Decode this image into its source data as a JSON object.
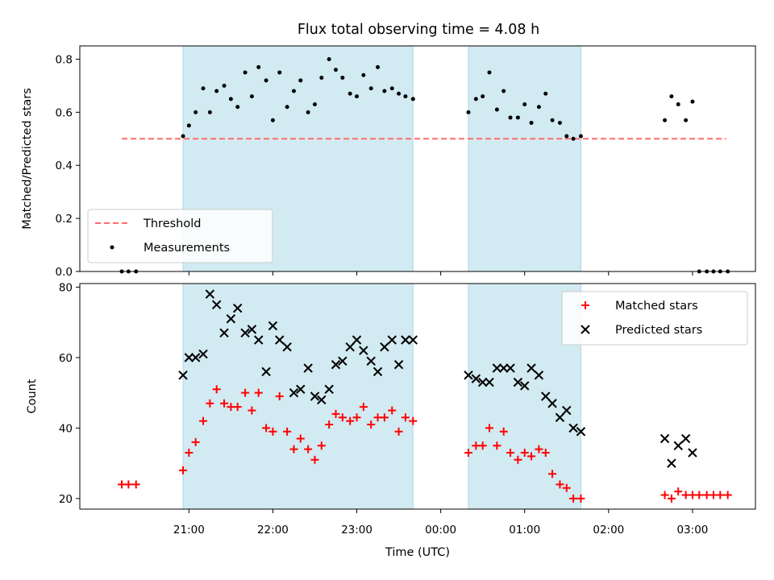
{
  "chart_data": {
    "title": "Flux total observing time = 4.08 h",
    "xlabel": "Time (UTC)",
    "x_tick_labels": [
      "21:00",
      "22:00",
      "23:00",
      "00:00",
      "01:00",
      "02:00",
      "03:00"
    ],
    "x_tick_hours": [
      21,
      22,
      23,
      24,
      25,
      26,
      27
    ],
    "x_range_hours": [
      19.7,
      27.75
    ],
    "colors": {
      "shade": "#add8e6",
      "threshold": "#ff6b6b",
      "measurements": "#000000",
      "matched": "#ff0000",
      "predicted": "#000000"
    },
    "shaded_intervals_hours": [
      [
        20.93,
        23.67
      ],
      [
        24.33,
        25.67
      ]
    ],
    "panels": [
      {
        "type": "scatter",
        "ylabel": "Matched/Predicted stars",
        "ylim": [
          0,
          0.85
        ],
        "y_ticks": [
          0.0,
          0.2,
          0.4,
          0.6,
          0.8
        ],
        "y_tick_labels": [
          "0.0",
          "0.2",
          "0.4",
          "0.6",
          "0.8"
        ],
        "legend_position": "lower-left",
        "threshold": {
          "name": "Threshold",
          "value": 0.5,
          "x_range_hours": [
            20.2,
            27.4
          ],
          "style": "dashed"
        },
        "series": [
          {
            "name": "Measurements",
            "marker": "dot",
            "points": [
              [
                20.2,
                0.0
              ],
              [
                20.28,
                0.0
              ],
              [
                20.37,
                0.0
              ],
              [
                20.93,
                0.51
              ],
              [
                21.0,
                0.55
              ],
              [
                21.08,
                0.6
              ],
              [
                21.17,
                0.69
              ],
              [
                21.25,
                0.6
              ],
              [
                21.33,
                0.68
              ],
              [
                21.42,
                0.7
              ],
              [
                21.5,
                0.65
              ],
              [
                21.58,
                0.62
              ],
              [
                21.67,
                0.75
              ],
              [
                21.75,
                0.66
              ],
              [
                21.83,
                0.77
              ],
              [
                21.92,
                0.72
              ],
              [
                22.0,
                0.57
              ],
              [
                22.08,
                0.75
              ],
              [
                22.17,
                0.62
              ],
              [
                22.25,
                0.68
              ],
              [
                22.33,
                0.72
              ],
              [
                22.42,
                0.6
              ],
              [
                22.5,
                0.63
              ],
              [
                22.58,
                0.73
              ],
              [
                22.67,
                0.8
              ],
              [
                22.75,
                0.76
              ],
              [
                22.83,
                0.73
              ],
              [
                22.92,
                0.67
              ],
              [
                23.0,
                0.66
              ],
              [
                23.08,
                0.74
              ],
              [
                23.17,
                0.69
              ],
              [
                23.25,
                0.77
              ],
              [
                23.33,
                0.68
              ],
              [
                23.42,
                0.69
              ],
              [
                23.5,
                0.67
              ],
              [
                23.58,
                0.66
              ],
              [
                23.67,
                0.65
              ],
              [
                24.33,
                0.6
              ],
              [
                24.42,
                0.65
              ],
              [
                24.5,
                0.66
              ],
              [
                24.58,
                0.75
              ],
              [
                24.67,
                0.61
              ],
              [
                24.75,
                0.68
              ],
              [
                24.83,
                0.58
              ],
              [
                24.92,
                0.58
              ],
              [
                25.0,
                0.63
              ],
              [
                25.08,
                0.56
              ],
              [
                25.17,
                0.62
              ],
              [
                25.25,
                0.67
              ],
              [
                25.33,
                0.57
              ],
              [
                25.42,
                0.56
              ],
              [
                25.5,
                0.51
              ],
              [
                25.58,
                0.5
              ],
              [
                25.67,
                0.51
              ],
              [
                26.67,
                0.57
              ],
              [
                26.75,
                0.66
              ],
              [
                26.83,
                0.63
              ],
              [
                26.92,
                0.57
              ],
              [
                27.0,
                0.64
              ],
              [
                27.08,
                0.0
              ],
              [
                27.17,
                0.0
              ],
              [
                27.25,
                0.0
              ],
              [
                27.33,
                0.0
              ],
              [
                27.42,
                0.0
              ]
            ]
          }
        ]
      },
      {
        "type": "scatter",
        "ylabel": "Count",
        "ylim": [
          17,
          81
        ],
        "y_ticks": [
          20,
          40,
          60,
          80
        ],
        "y_tick_labels": [
          "20",
          "40",
          "60",
          "80"
        ],
        "legend_position": "upper-right",
        "series": [
          {
            "name": "Matched stars",
            "marker": "plus",
            "points": [
              [
                20.2,
                24
              ],
              [
                20.28,
                24
              ],
              [
                20.37,
                24
              ],
              [
                20.93,
                28
              ],
              [
                21.0,
                33
              ],
              [
                21.08,
                36
              ],
              [
                21.17,
                42
              ],
              [
                21.25,
                47
              ],
              [
                21.33,
                51
              ],
              [
                21.42,
                47
              ],
              [
                21.5,
                46
              ],
              [
                21.58,
                46
              ],
              [
                21.67,
                50
              ],
              [
                21.75,
                45
              ],
              [
                21.83,
                50
              ],
              [
                21.92,
                40
              ],
              [
                22.0,
                39
              ],
              [
                22.08,
                49
              ],
              [
                22.17,
                39
              ],
              [
                22.25,
                34
              ],
              [
                22.33,
                37
              ],
              [
                22.42,
                34
              ],
              [
                22.5,
                31
              ],
              [
                22.58,
                35
              ],
              [
                22.67,
                41
              ],
              [
                22.75,
                44
              ],
              [
                22.83,
                43
              ],
              [
                22.92,
                42
              ],
              [
                23.0,
                43
              ],
              [
                23.08,
                46
              ],
              [
                23.17,
                41
              ],
              [
                23.25,
                43
              ],
              [
                23.33,
                43
              ],
              [
                23.42,
                45
              ],
              [
                23.5,
                39
              ],
              [
                23.58,
                43
              ],
              [
                23.67,
                42
              ],
              [
                24.33,
                33
              ],
              [
                24.42,
                35
              ],
              [
                24.5,
                35
              ],
              [
                24.58,
                40
              ],
              [
                24.67,
                35
              ],
              [
                24.75,
                39
              ],
              [
                24.83,
                33
              ],
              [
                24.92,
                31
              ],
              [
                25.0,
                33
              ],
              [
                25.08,
                32
              ],
              [
                25.17,
                34
              ],
              [
                25.25,
                33
              ],
              [
                25.33,
                27
              ],
              [
                25.42,
                24
              ],
              [
                25.5,
                23
              ],
              [
                25.58,
                20
              ],
              [
                25.67,
                20
              ],
              [
                26.67,
                21
              ],
              [
                26.75,
                20
              ],
              [
                26.83,
                22
              ],
              [
                26.92,
                21
              ],
              [
                27.0,
                21
              ],
              [
                27.08,
                21
              ],
              [
                27.17,
                21
              ],
              [
                27.25,
                21
              ],
              [
                27.33,
                21
              ],
              [
                27.42,
                21
              ]
            ]
          },
          {
            "name": "Predicted stars",
            "marker": "x",
            "points": [
              [
                20.93,
                55
              ],
              [
                21.0,
                60
              ],
              [
                21.08,
                60
              ],
              [
                21.17,
                61
              ],
              [
                21.25,
                78
              ],
              [
                21.33,
                75
              ],
              [
                21.42,
                67
              ],
              [
                21.5,
                71
              ],
              [
                21.58,
                74
              ],
              [
                21.67,
                67
              ],
              [
                21.75,
                68
              ],
              [
                21.83,
                65
              ],
              [
                21.92,
                56
              ],
              [
                22.0,
                69
              ],
              [
                22.08,
                65
              ],
              [
                22.17,
                63
              ],
              [
                22.25,
                50
              ],
              [
                22.33,
                51
              ],
              [
                22.42,
                57
              ],
              [
                22.5,
                49
              ],
              [
                22.58,
                48
              ],
              [
                22.67,
                51
              ],
              [
                22.75,
                58
              ],
              [
                22.83,
                59
              ],
              [
                22.92,
                63
              ],
              [
                23.0,
                65
              ],
              [
                23.08,
                62
              ],
              [
                23.17,
                59
              ],
              [
                23.25,
                56
              ],
              [
                23.33,
                63
              ],
              [
                23.42,
                65
              ],
              [
                23.5,
                58
              ],
              [
                23.58,
                65
              ],
              [
                23.67,
                65
              ],
              [
                24.33,
                55
              ],
              [
                24.42,
                54
              ],
              [
                24.5,
                53
              ],
              [
                24.58,
                53
              ],
              [
                24.67,
                57
              ],
              [
                24.75,
                57
              ],
              [
                24.83,
                57
              ],
              [
                24.92,
                53
              ],
              [
                25.0,
                52
              ],
              [
                25.08,
                57
              ],
              [
                25.17,
                55
              ],
              [
                25.25,
                49
              ],
              [
                25.33,
                47
              ],
              [
                25.42,
                43
              ],
              [
                25.5,
                45
              ],
              [
                25.58,
                40
              ],
              [
                25.67,
                39
              ],
              [
                26.67,
                37
              ],
              [
                26.75,
                30
              ],
              [
                26.83,
                35
              ],
              [
                26.92,
                37
              ],
              [
                27.0,
                33
              ]
            ]
          }
        ]
      }
    ]
  }
}
